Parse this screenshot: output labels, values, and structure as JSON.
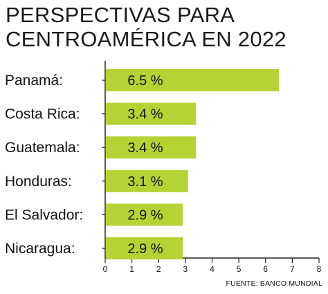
{
  "title_lines": [
    "PERSPECTIVAS PARA",
    "CENTROAMÉRICA EN 2022"
  ],
  "source": "FUENTE: BANCO MUNDIAL",
  "colors": {
    "bar": "#b5d334",
    "axis": "#222222",
    "text": "#111111"
  },
  "chart_data": {
    "type": "bar",
    "orientation": "horizontal",
    "title": "PERSPECTIVAS PARA CENTROAMÉRICA EN 2022",
    "categories": [
      "Panamá:",
      "Costa Rica:",
      "Guatemala:",
      "Honduras:",
      "El Salvador:",
      "Nicaragua:"
    ],
    "values": [
      6.5,
      3.4,
      3.4,
      3.1,
      2.9,
      2.9
    ],
    "value_labels": [
      "6.5 %",
      "3.4 %",
      "3.4 %",
      "3.1 %",
      "2.9 %",
      "2.9 %"
    ],
    "xticks": [
      "0",
      "1",
      "2",
      "3",
      "4",
      "5",
      "6",
      "7",
      "8"
    ],
    "xlim": [
      0,
      8
    ],
    "xlabel": "",
    "ylabel": "",
    "grid": false,
    "legend": "none"
  }
}
